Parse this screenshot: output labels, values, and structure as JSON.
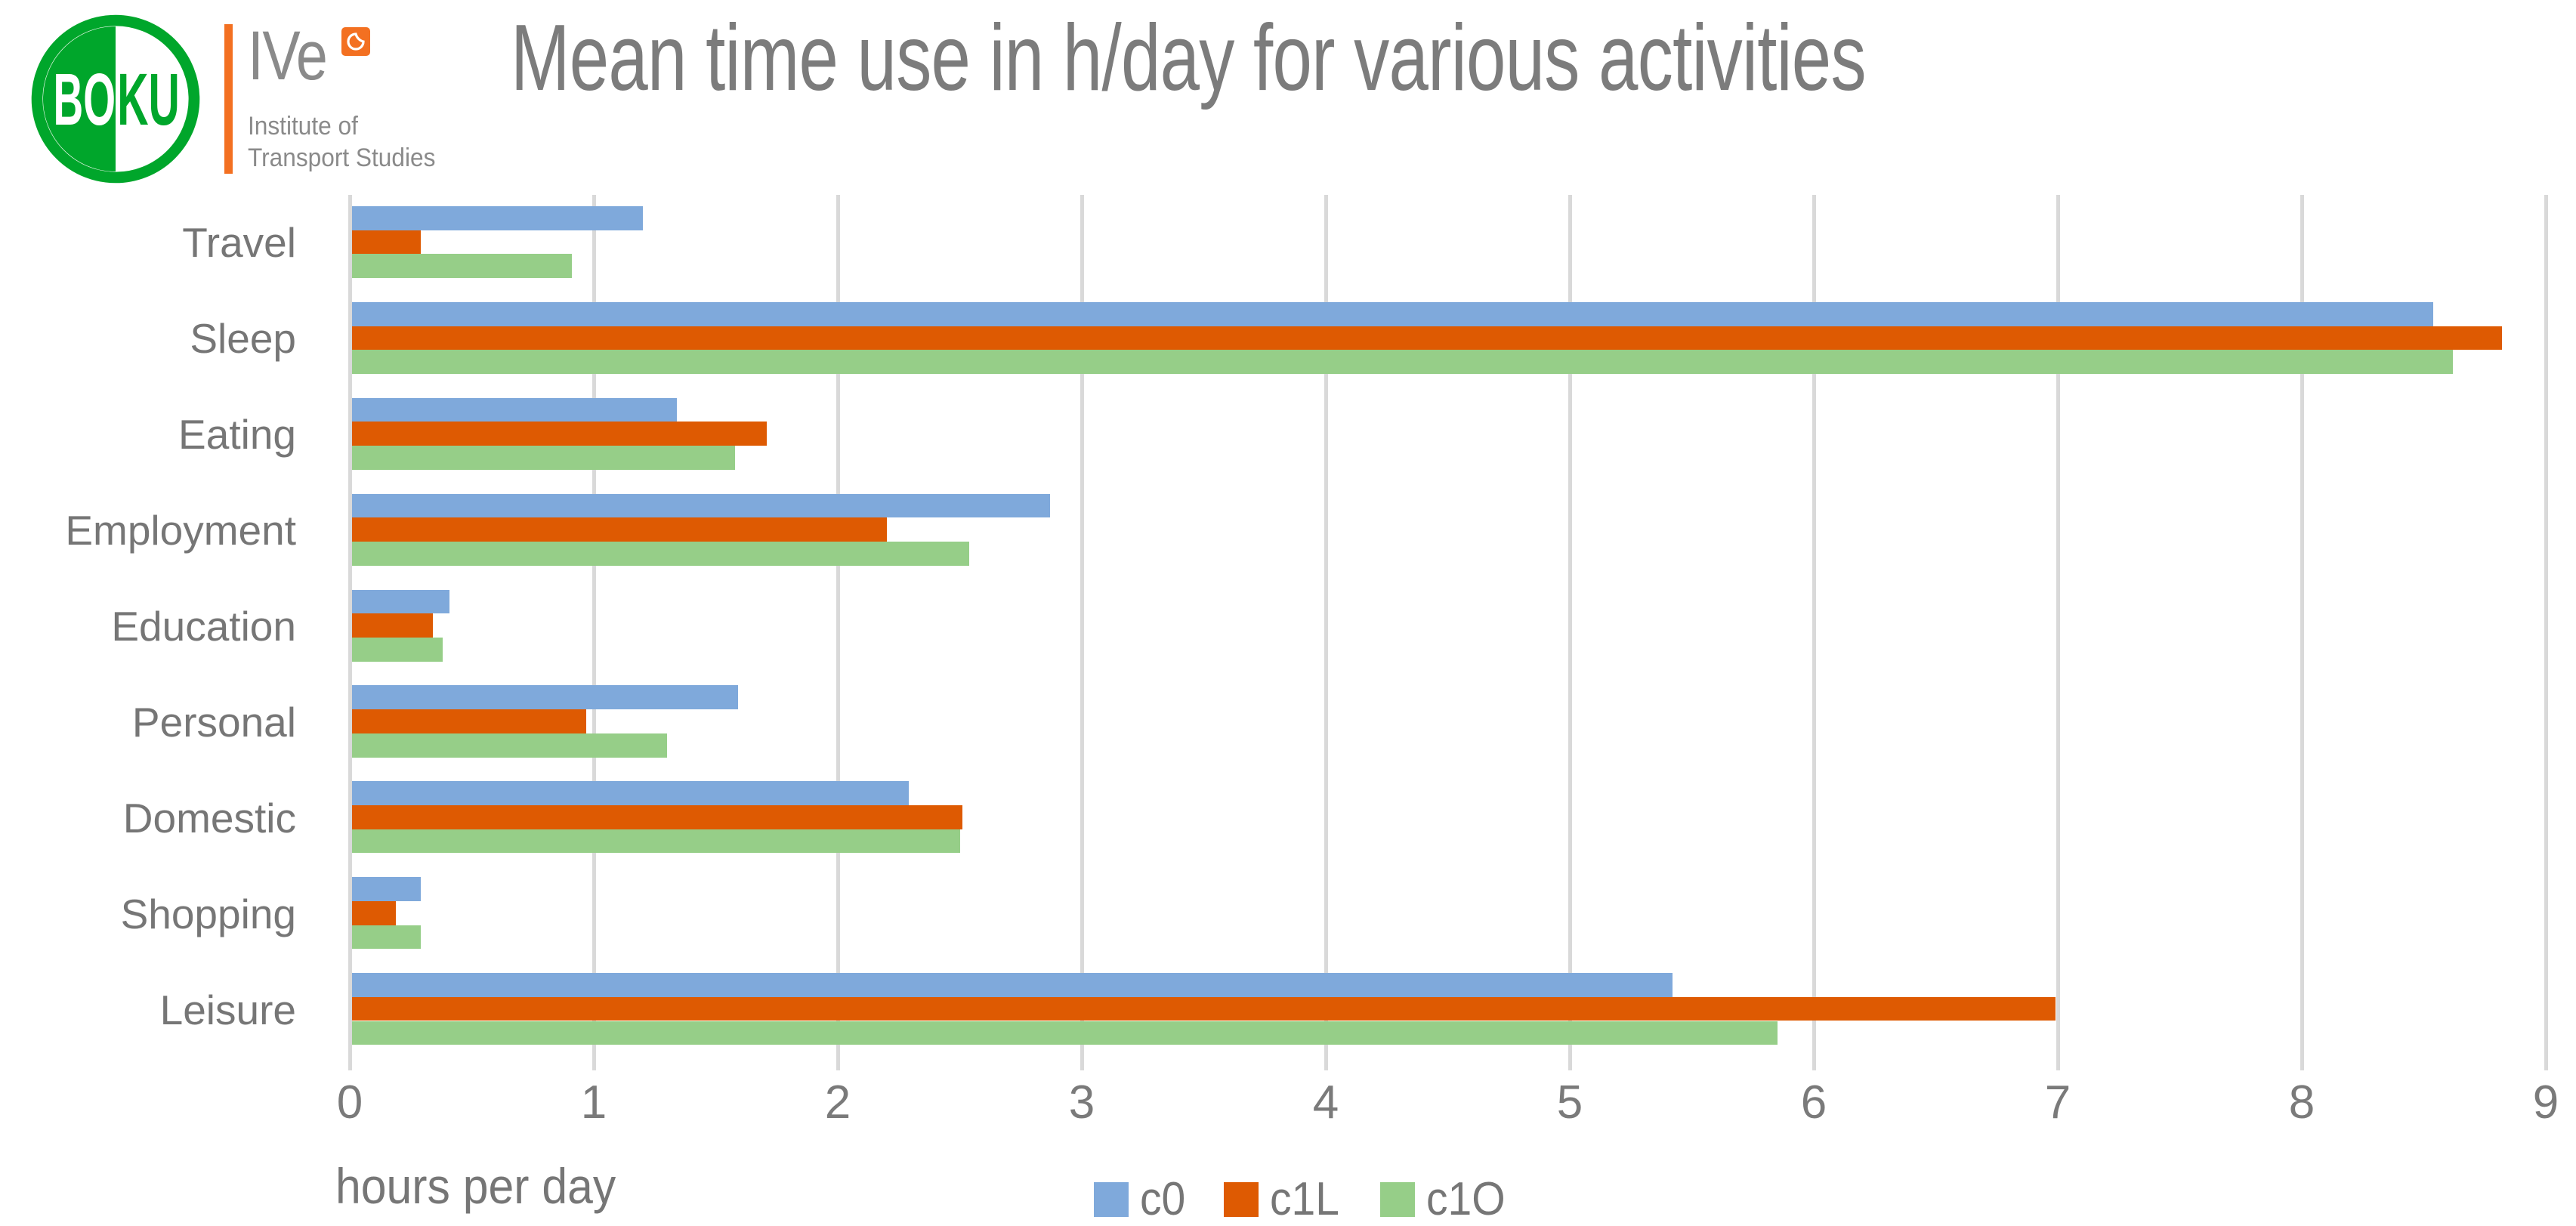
{
  "header": {
    "boku_logo": {
      "text_left": "BO",
      "text_right": "KU"
    },
    "ive": {
      "name": "IVe",
      "subtitle_line1": "Institute of",
      "subtitle_line2": "Transport Studies"
    },
    "title": "Mean time use in h/day for various activities"
  },
  "colors": {
    "boku_green": "#00A62B",
    "accent_orange": "#F37021",
    "grid": "#D9D9D9",
    "series_c0": "#7FA9DB",
    "series_c1L": "#DE5A02",
    "series_c1O": "#96CE88"
  },
  "chart_data": {
    "type": "bar",
    "orientation": "horizontal",
    "title": "Mean time use in h/day for various activities",
    "xlabel": "hours per day",
    "xlim": [
      0,
      9
    ],
    "xticks": [
      "0",
      "1",
      "2",
      "3",
      "4",
      "5",
      "6",
      "7",
      "8",
      "9"
    ],
    "grid": true,
    "legend_position": "bottom-center",
    "categories": [
      "Travel",
      "Sleep",
      "Eating",
      "Employment",
      "Education",
      "Personal",
      "Domestic",
      "Shopping",
      "Leisure"
    ],
    "series": [
      {
        "name": "c0",
        "color": "#7FA9DB",
        "values": [
          1.2,
          8.54,
          1.34,
          2.87,
          0.41,
          1.59,
          2.29,
          0.29,
          5.42
        ]
      },
      {
        "name": "c1L",
        "color": "#DE5A02",
        "values": [
          0.29,
          8.82,
          1.71,
          2.2,
          0.34,
          0.97,
          2.51,
          0.19,
          6.99
        ]
      },
      {
        "name": "c1O",
        "color": "#96CE88",
        "values": [
          0.91,
          8.62,
          1.58,
          2.54,
          0.38,
          1.3,
          2.5,
          0.29,
          5.85
        ]
      }
    ]
  }
}
